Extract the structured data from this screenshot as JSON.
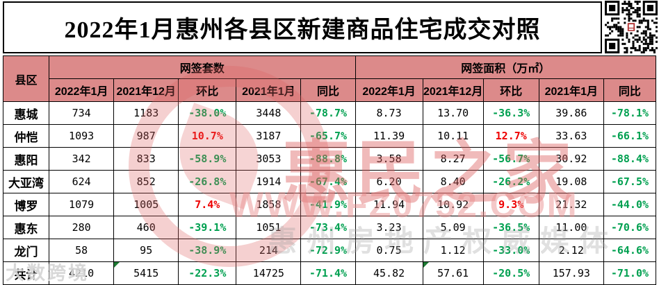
{
  "title": "2022年1月惠州各县区新建商品住宅成交对照",
  "colors": {
    "header_bg": "#dc8a8a",
    "increase_red": "#ee0000",
    "decrease_green": "#00a050",
    "grid": "#000000"
  },
  "table": {
    "corner_header": "县区",
    "groups": [
      {
        "label": "网签套数",
        "subheaders": [
          "2022年1月",
          "2021年12月",
          "环比",
          "2021年1月",
          "同比"
        ]
      },
      {
        "label": "网签面积（万㎡）",
        "subheaders": [
          "2022年1月",
          "2021年12月",
          "环比",
          "2021年1月",
          "同比"
        ]
      }
    ],
    "rows": [
      {
        "district": "惠城",
        "units": [
          "734",
          "1183",
          "-38.0%",
          "3448",
          "-78.7%"
        ],
        "area": [
          "8.73",
          "13.70",
          "-36.3%",
          "39.86",
          "-78.1%"
        ]
      },
      {
        "district": "仲恺",
        "units": [
          "1093",
          "987",
          "10.7%",
          "3187",
          "-65.7%"
        ],
        "area": [
          "11.39",
          "10.11",
          "12.7%",
          "33.63",
          "-66.1%"
        ]
      },
      {
        "district": "惠阳",
        "units": [
          "342",
          "833",
          "-58.9%",
          "3053",
          "-88.8%"
        ],
        "area": [
          "3.58",
          "8.27",
          "-56.7%",
          "30.92",
          "-88.4%"
        ]
      },
      {
        "district": "大亚湾",
        "units": [
          "624",
          "852",
          "-26.8%",
          "1914",
          "-67.4%"
        ],
        "area": [
          "6.20",
          "8.40",
          "-26.2%",
          "19.08",
          "-67.5%"
        ]
      },
      {
        "district": "博罗",
        "units": [
          "1079",
          "1005",
          "7.4%",
          "1858",
          "-41.9%"
        ],
        "area": [
          "11.94",
          "10.92",
          "9.3%",
          "21.32",
          "-44.0%"
        ]
      },
      {
        "district": "惠东",
        "units": [
          "280",
          "460",
          "-39.1%",
          "1051",
          "-73.4%"
        ],
        "area": [
          "3.23",
          "5.09",
          "-36.5%",
          "11.00",
          "-70.6%"
        ]
      },
      {
        "district": "龙门",
        "units": [
          "58",
          "95",
          "-38.9%",
          "214",
          "-72.9%"
        ],
        "area": [
          "0.75",
          "1.12",
          "-33.0%",
          "2.12",
          "-64.6%"
        ]
      },
      {
        "district": "共计",
        "units": [
          "4210",
          "5415",
          "-22.3%",
          "14725",
          "-71.4%"
        ],
        "area": [
          "45.82",
          "57.61",
          "-20.5%",
          "157.93",
          "-71.0%"
        ],
        "unit_notes": [
          1
        ],
        "area_notes": [
          1
        ]
      }
    ]
  },
  "watermarks": {
    "site_name": "惠民之家",
    "site_url": "WWW.FZ0752.COM",
    "slogan": "惠州房地产权威媒体",
    "corner_stamp": "大数跨境"
  }
}
